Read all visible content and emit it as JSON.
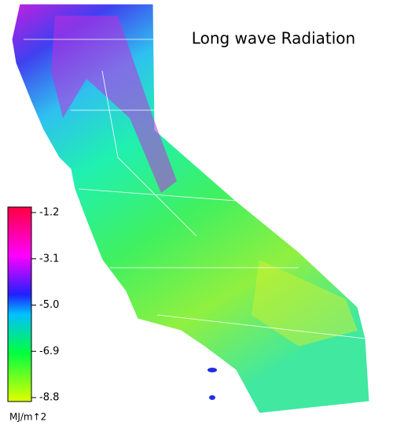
{
  "title": "Long wave Radiation",
  "colorbar": {
    "lim": [
      -8.8,
      -1.2
    ],
    "ticks": [
      -1.2,
      -3.1,
      {
        "value": -5,
        "label": "-5.0"
      },
      -6.9,
      -8.8
    ],
    "unit": "MJ/m↑2"
  }
}
